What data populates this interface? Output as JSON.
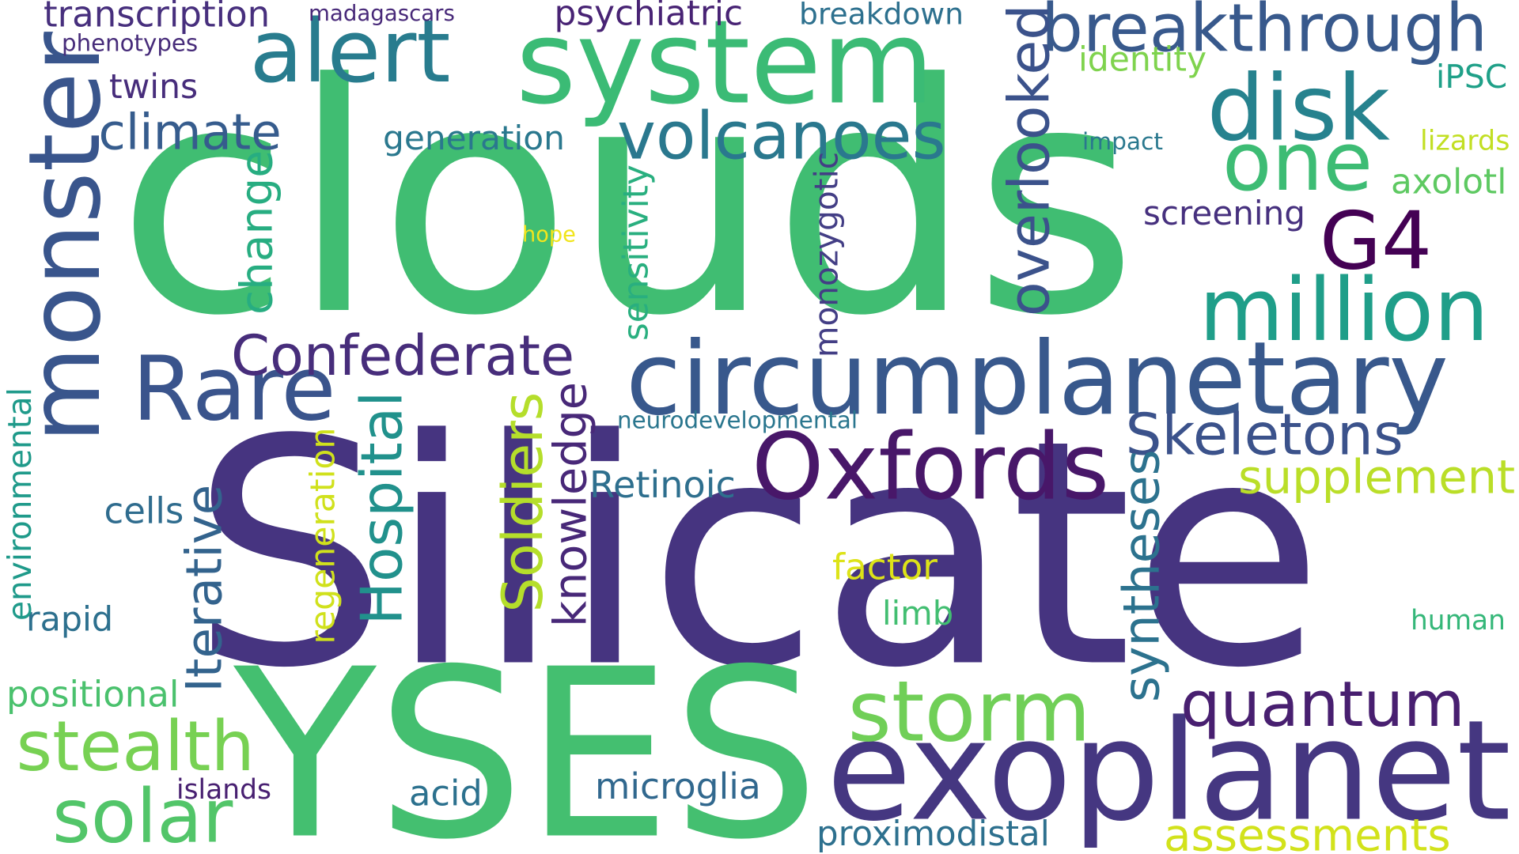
{
  "background_color": "#ffffff",
  "words": [
    {
      "id": "silicate",
      "text": "Silicate",
      "color": "#463480"
    },
    {
      "id": "clouds",
      "text": "clouds",
      "color": "#40bd72"
    },
    {
      "id": "yses",
      "text": "YSES",
      "color": "#44bf70"
    },
    {
      "id": "exoplanet",
      "text": "exoplanet",
      "color": "#453781"
    },
    {
      "id": "system",
      "text": "system",
      "color": "#3bbb75"
    },
    {
      "id": "alert",
      "text": "alert",
      "color": "#287c8e"
    },
    {
      "id": "monster",
      "text": "monster",
      "color": "#39558c"
    },
    {
      "id": "circumplanetary",
      "text": "circumplanetary",
      "color": "#38588c"
    },
    {
      "id": "breakthrough",
      "text": "breakthrough",
      "color": "#38598c"
    },
    {
      "id": "disk",
      "text": "disk",
      "color": "#26828e"
    },
    {
      "id": "million",
      "text": "million",
      "color": "#1f9e89"
    },
    {
      "id": "one",
      "text": "one",
      "color": "#3dbc74"
    },
    {
      "id": "g4",
      "text": "G4",
      "color": "#440154"
    },
    {
      "id": "rare",
      "text": "Rare",
      "color": "#3a548c"
    },
    {
      "id": "oxfords",
      "text": "Oxfords",
      "color": "#481769"
    },
    {
      "id": "storm",
      "text": "storm",
      "color": "#70cf57"
    },
    {
      "id": "solar",
      "text": "solar",
      "color": "#52c569"
    },
    {
      "id": "quantum",
      "text": "quantum",
      "color": "#481f70"
    },
    {
      "id": "volcanoes",
      "text": "volcanoes",
      "color": "#2a788e"
    },
    {
      "id": "confederate",
      "text": "Confederate",
      "color": "#472d7b"
    },
    {
      "id": "stealth",
      "text": "stealth",
      "color": "#77d153"
    },
    {
      "id": "overlooked",
      "text": "overlooked",
      "color": "#3b528b"
    },
    {
      "id": "skeletons",
      "text": "Skeletons",
      "color": "#3b528b"
    },
    {
      "id": "supplement",
      "text": "supplement",
      "color": "#bade28"
    },
    {
      "id": "syntheses",
      "text": "syntheses",
      "color": "#2c728e"
    },
    {
      "id": "assessments",
      "text": "assessments",
      "color": "#d2e21b"
    },
    {
      "id": "hospital",
      "text": "Hospital",
      "color": "#21918c"
    },
    {
      "id": "soldiers",
      "text": "Soldiers",
      "color": "#b5de2b"
    },
    {
      "id": "iterative",
      "text": "Iterative",
      "color": "#33638d"
    },
    {
      "id": "climate",
      "text": "climate",
      "color": "#365c8d"
    },
    {
      "id": "knowledge",
      "text": "knowledge",
      "color": "#482878"
    },
    {
      "id": "change",
      "text": "change",
      "color": "#27ad81"
    },
    {
      "id": "transcription",
      "text": "transcription",
      "color": "#472f7d"
    },
    {
      "id": "psychiatric",
      "text": "psychiatric",
      "color": "#482374"
    },
    {
      "id": "breakdown",
      "text": "breakdown",
      "color": "#2d708e"
    },
    {
      "id": "microglia",
      "text": "microglia",
      "color": "#31688e"
    },
    {
      "id": "proximodistal",
      "text": "proximodistal",
      "color": "#2d708e"
    },
    {
      "id": "retinoic",
      "text": "Retinoic",
      "color": "#2e6f8e"
    },
    {
      "id": "screening",
      "text": "screening",
      "color": "#46307e"
    },
    {
      "id": "generation",
      "text": "generation",
      "color": "#2a788e"
    },
    {
      "id": "identity",
      "text": "identity",
      "color": "#7fd34e"
    },
    {
      "id": "ipsc",
      "text": "iPSC",
      "color": "#1fa088"
    },
    {
      "id": "axolotl",
      "text": "axolotl",
      "color": "#5ec962"
    },
    {
      "id": "positional",
      "text": "positional",
      "color": "#4ac16d"
    },
    {
      "id": "rapid",
      "text": "rapid",
      "color": "#2d708e"
    },
    {
      "id": "cells",
      "text": "cells",
      "color": "#2f6c8e"
    },
    {
      "id": "acid",
      "text": "acid",
      "color": "#2c718e"
    },
    {
      "id": "factor",
      "text": "factor",
      "color": "#dde318"
    },
    {
      "id": "limb",
      "text": "limb",
      "color": "#42be71"
    },
    {
      "id": "human",
      "text": "human",
      "color": "#35b779"
    },
    {
      "id": "twins",
      "text": "twins",
      "color": "#472d7b"
    },
    {
      "id": "monozygotic",
      "text": "monozygotic",
      "color": "#433e85"
    },
    {
      "id": "sensitivity",
      "text": "sensitivity",
      "color": "#29af7f"
    },
    {
      "id": "environmental",
      "text": "environmental",
      "color": "#1f9a8a"
    },
    {
      "id": "regeneration",
      "text": "regeneration",
      "color": "#d0e11c"
    },
    {
      "id": "neurodevelopmental",
      "text": "neurodevelopmental",
      "color": "#2a768e"
    },
    {
      "id": "phenotypes",
      "text": "phenotypes",
      "color": "#472c7a"
    },
    {
      "id": "madagascars",
      "text": "madagascars",
      "color": "#482979"
    },
    {
      "id": "islands",
      "text": "islands",
      "color": "#482071"
    },
    {
      "id": "impact",
      "text": "impact",
      "color": "#2a788e"
    },
    {
      "id": "lizards",
      "text": "lizards",
      "color": "#c2df23"
    },
    {
      "id": "hope",
      "text": "hope",
      "color": "#f1e51d"
    }
  ]
}
